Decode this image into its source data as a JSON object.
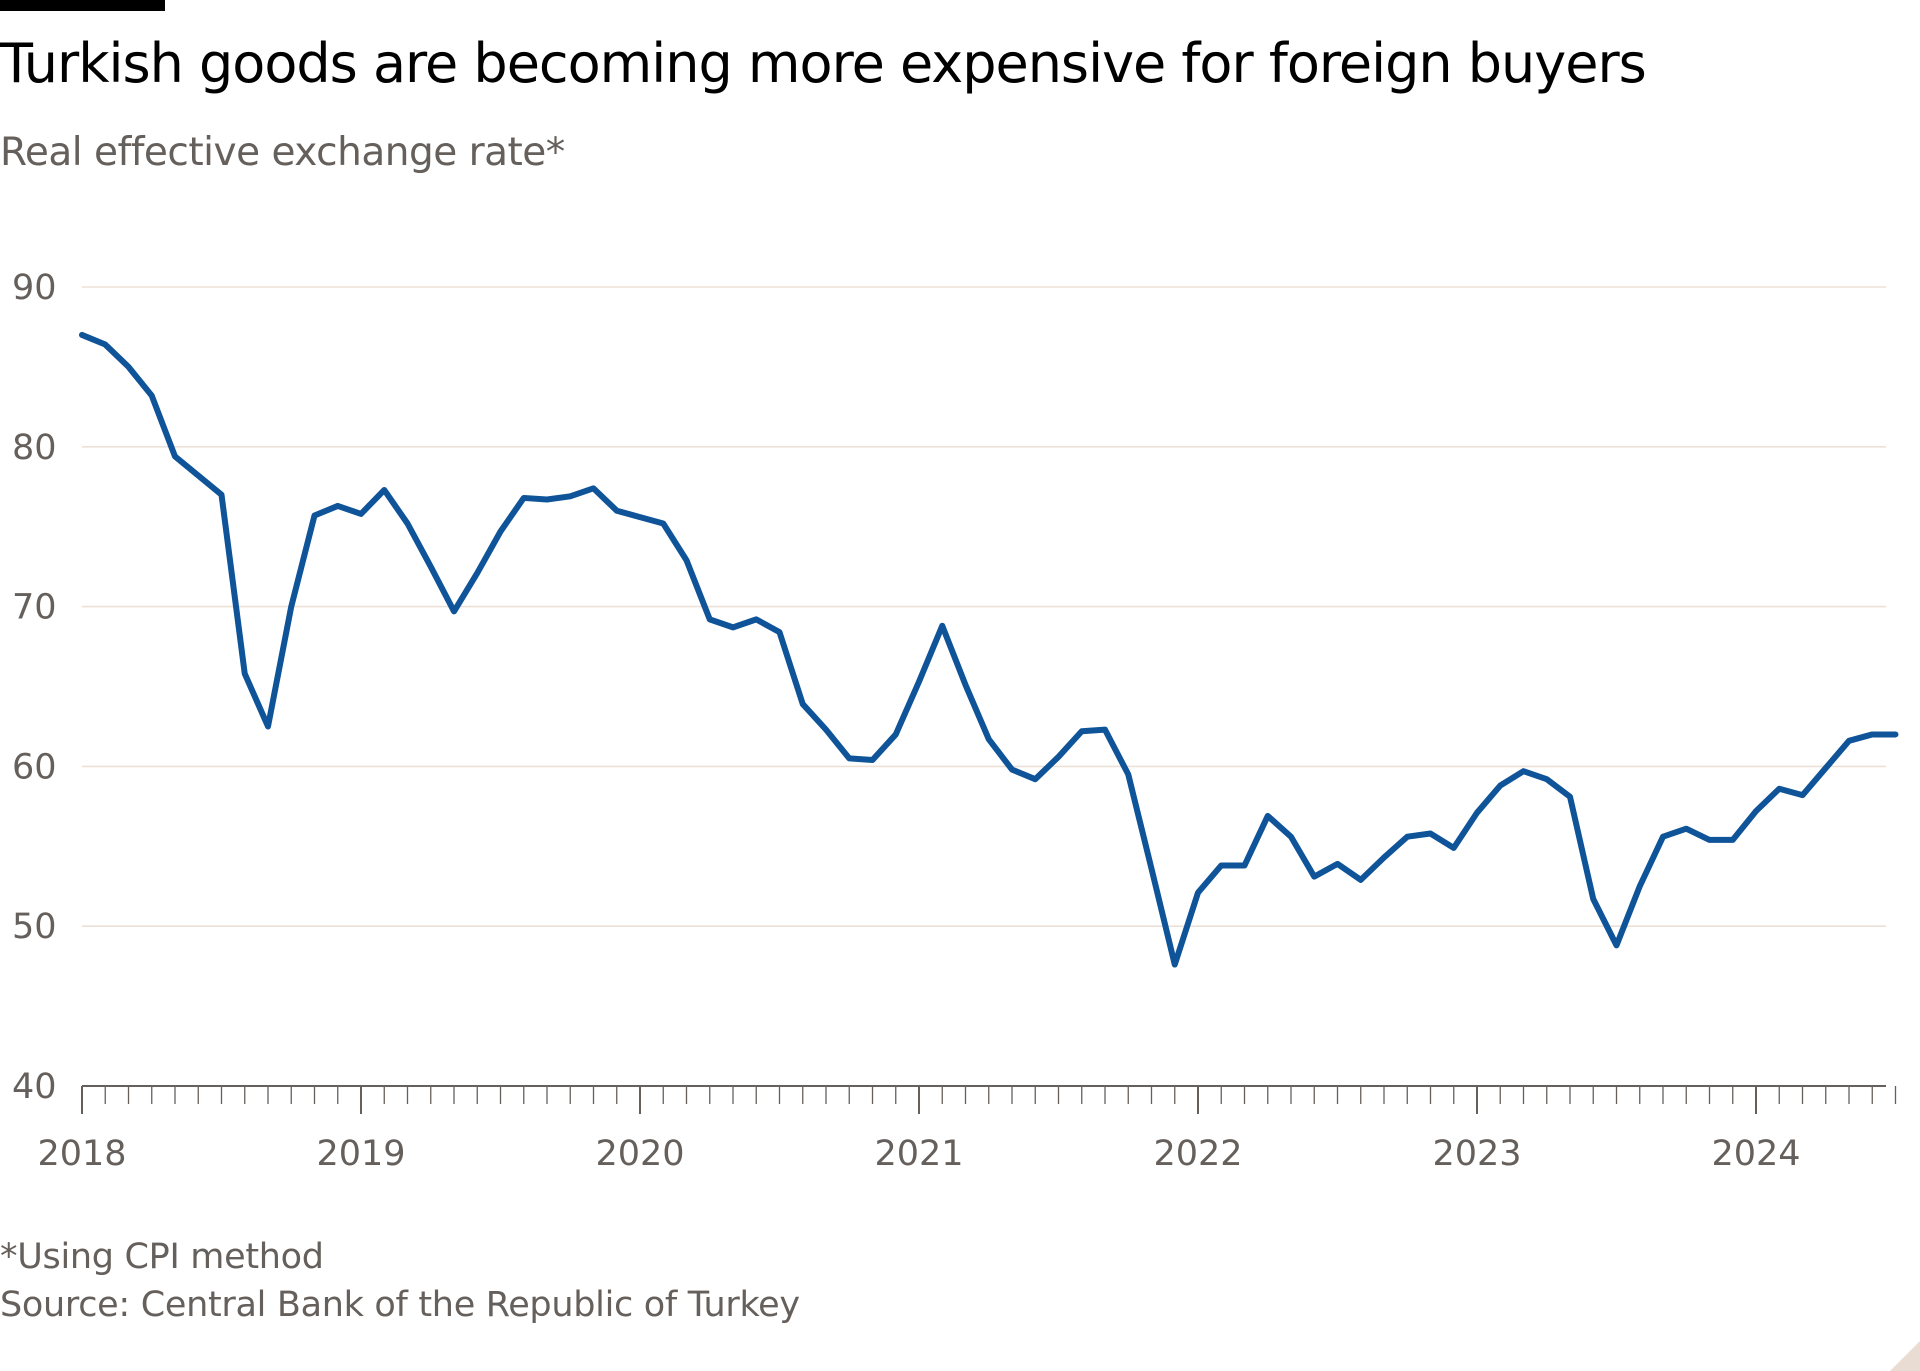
{
  "header": {
    "title": "Turkish goods are becoming more expensive for foreign buyers",
    "subtitle": "Real effective exchange rate*"
  },
  "footer": {
    "note": "*Using CPI method",
    "source": "Source: Central Bank of the Republic of Turkey"
  },
  "colors": {
    "line": "#0f5499",
    "grid": "#ede0d6",
    "axis": "#66605c",
    "text": "#66605c"
  },
  "chart_data": {
    "type": "line",
    "title": "Turkish goods are becoming more expensive for foreign buyers",
    "subtitle": "Real effective exchange rate*",
    "xlabel": "",
    "ylabel": "",
    "ylim": [
      40,
      90
    ],
    "yticks": [
      40,
      50,
      60,
      70,
      80,
      90
    ],
    "xlim": [
      "2018-01",
      "2024-07"
    ],
    "xticks": [
      "2018",
      "2019",
      "2020",
      "2021",
      "2022",
      "2023",
      "2024"
    ],
    "grid": true,
    "legend": "none",
    "series": [
      {
        "x": [
          "2018-01",
          "2018-02",
          "2018-03",
          "2018-04",
          "2018-05",
          "2018-06",
          "2018-07",
          "2018-08",
          "2018-09",
          "2018-10",
          "2018-11",
          "2018-12",
          "2019-01",
          "2019-02",
          "2019-03",
          "2019-04",
          "2019-05",
          "2019-06",
          "2019-07",
          "2019-08",
          "2019-09",
          "2019-10",
          "2019-11",
          "2019-12",
          "2020-01",
          "2020-02",
          "2020-03",
          "2020-04",
          "2020-05",
          "2020-06",
          "2020-07",
          "2020-08",
          "2020-09",
          "2020-10",
          "2020-11",
          "2020-12",
          "2021-01",
          "2021-02",
          "2021-03",
          "2021-04",
          "2021-05",
          "2021-06",
          "2021-07",
          "2021-08",
          "2021-09",
          "2021-10",
          "2021-11",
          "2021-12",
          "2022-01",
          "2022-02",
          "2022-03",
          "2022-04",
          "2022-05",
          "2022-06",
          "2022-07",
          "2022-08",
          "2022-09",
          "2022-10",
          "2022-11",
          "2022-12",
          "2023-01",
          "2023-02",
          "2023-03",
          "2023-04",
          "2023-05",
          "2023-06",
          "2023-07",
          "2023-08",
          "2023-09",
          "2023-10",
          "2023-11",
          "2023-12",
          "2024-01",
          "2024-02",
          "2024-03",
          "2024-04",
          "2024-05",
          "2024-06",
          "2024-07"
        ],
        "values": [
          87.0,
          86.4,
          85.0,
          83.2,
          79.4,
          78.2,
          77.0,
          65.8,
          62.5,
          70.0,
          75.7,
          76.3,
          75.8,
          77.3,
          75.2,
          72.5,
          69.7,
          72.1,
          74.7,
          76.8,
          76.7,
          76.9,
          77.4,
          76.0,
          75.6,
          75.2,
          72.9,
          69.2,
          68.7,
          69.2,
          68.4,
          63.9,
          62.3,
          60.5,
          60.4,
          62.0,
          65.3,
          68.8,
          65.1,
          61.7,
          59.8,
          59.2,
          60.6,
          62.2,
          62.3,
          59.5,
          53.6,
          47.6,
          52.1,
          53.8,
          53.8,
          56.9,
          55.6,
          53.1,
          53.9,
          52.9,
          54.3,
          55.6,
          55.8,
          54.9,
          57.1,
          58.8,
          59.7,
          59.2,
          58.1,
          51.7,
          48.8,
          52.5,
          55.6,
          56.1,
          55.4,
          55.4,
          57.2,
          58.6,
          58.2,
          59.9,
          61.6,
          62.0,
          62.0
        ]
      }
    ]
  }
}
